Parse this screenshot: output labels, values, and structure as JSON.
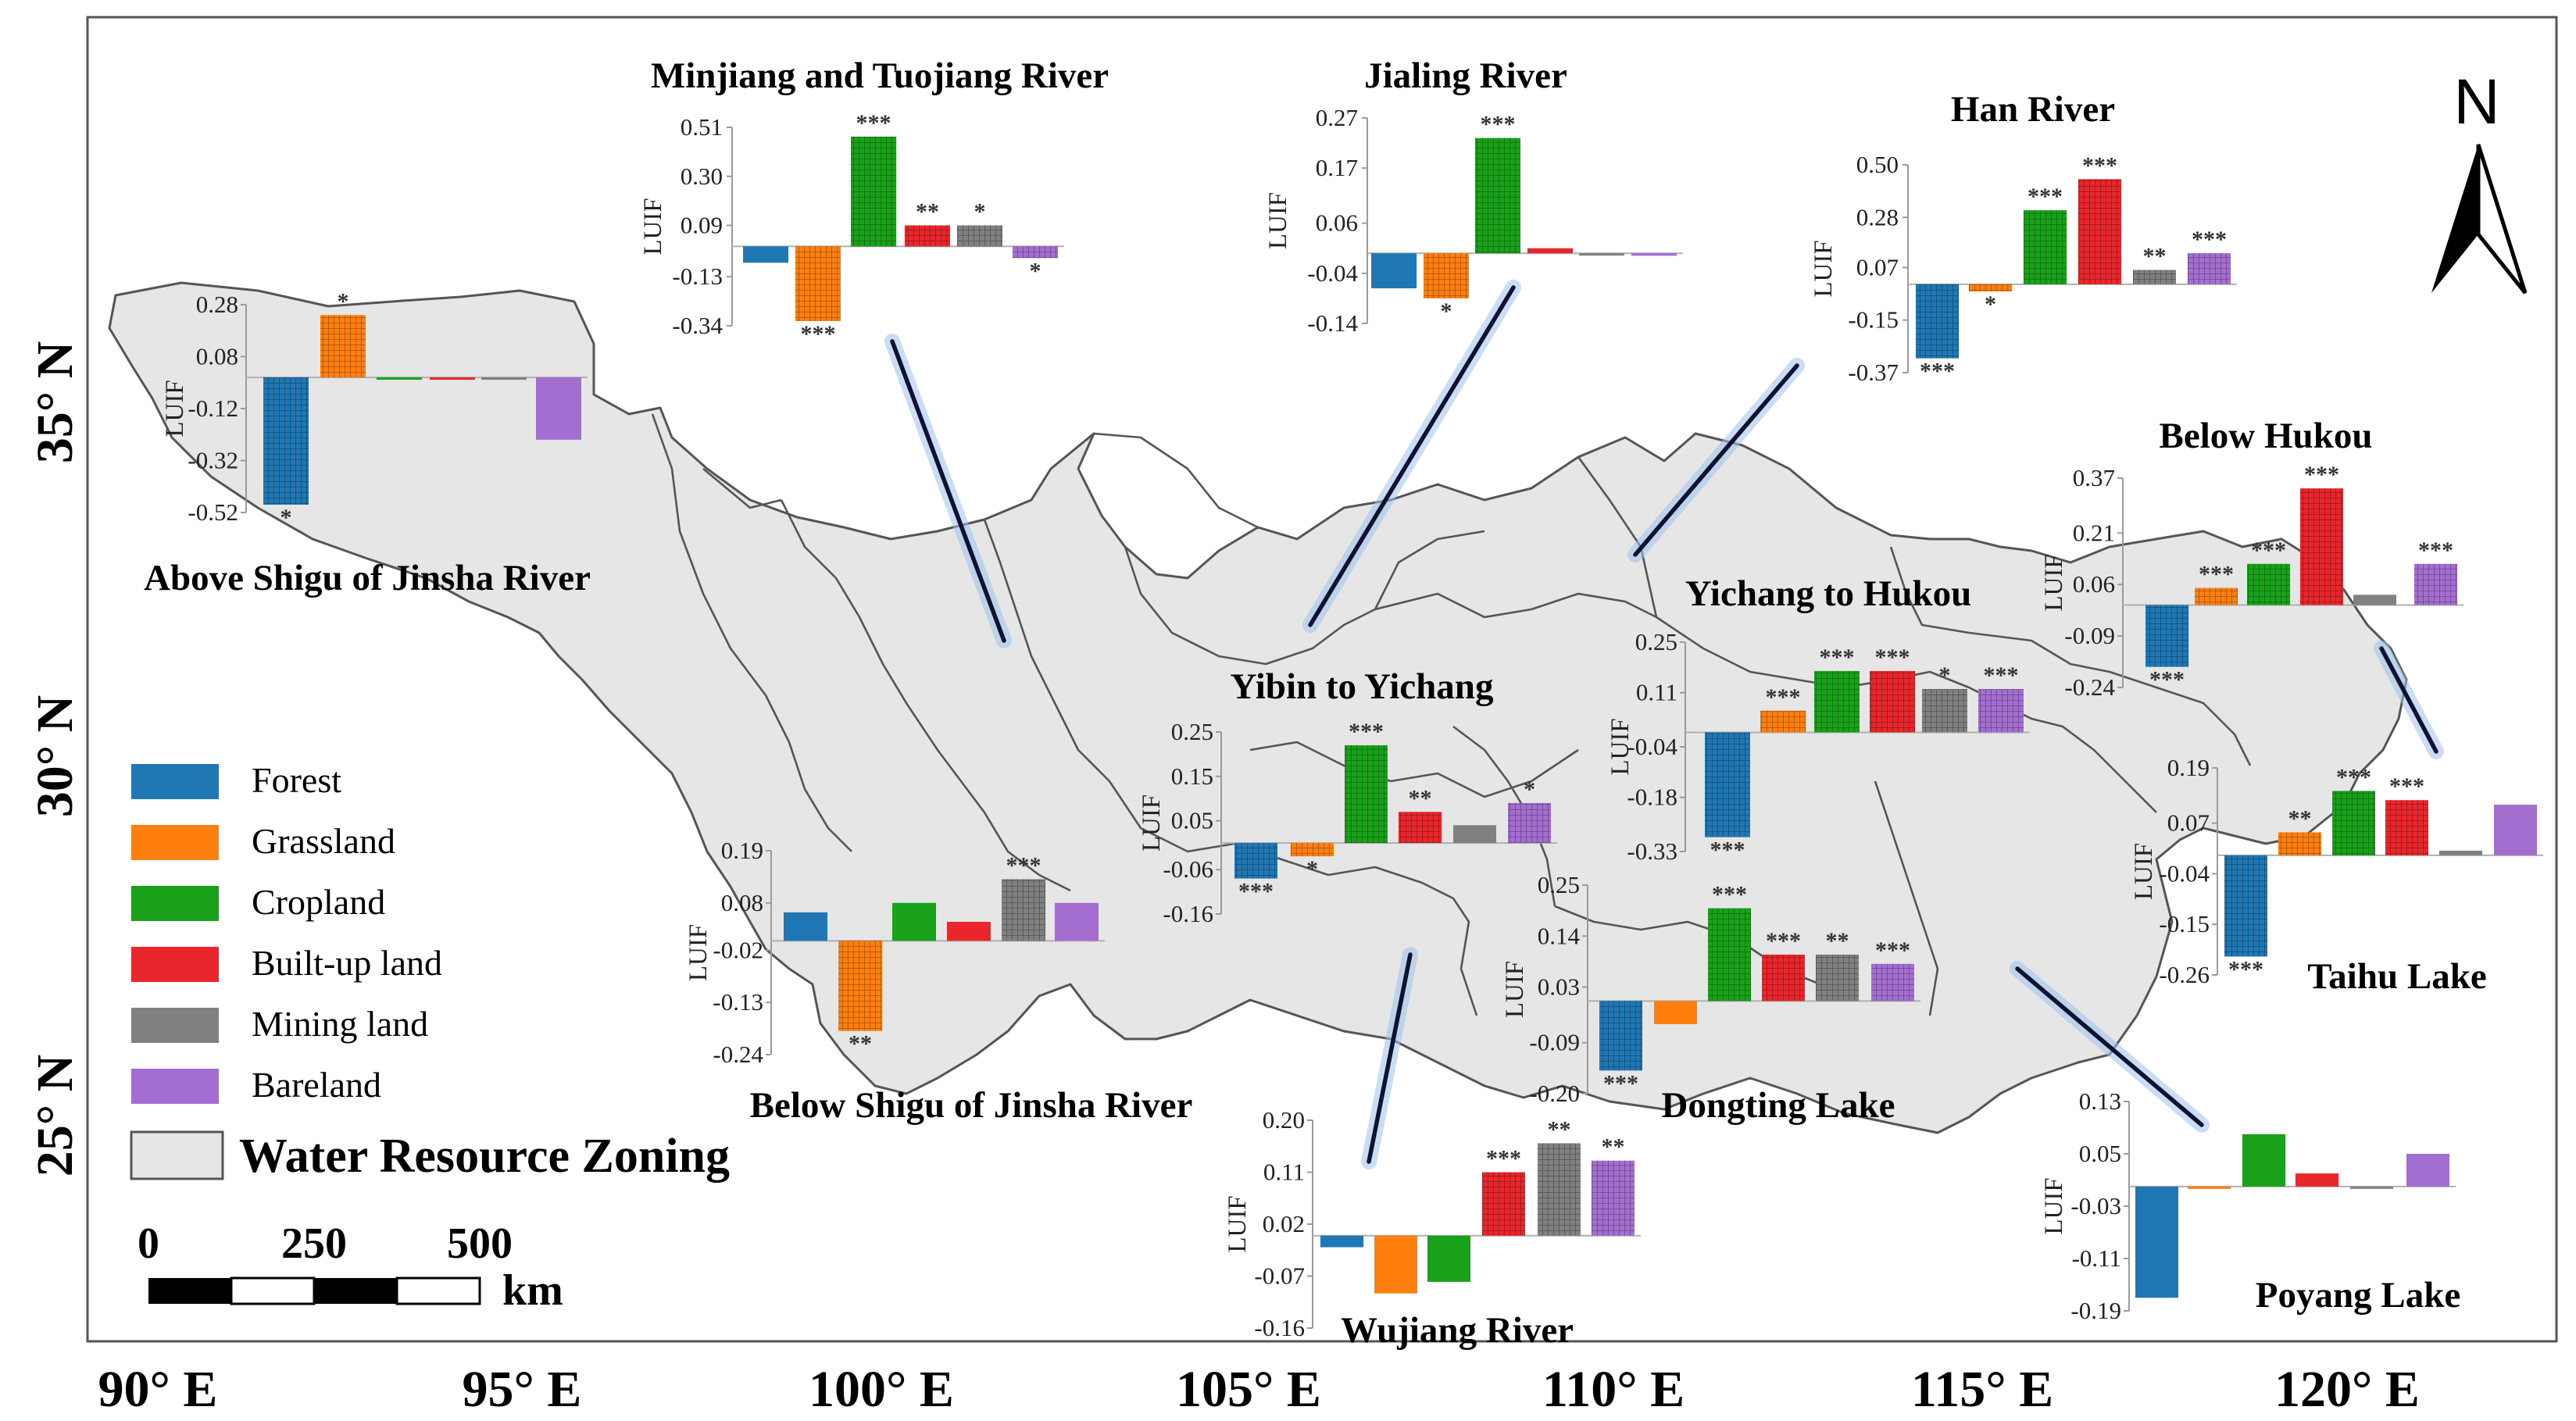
{
  "map": {
    "north_label": "N",
    "lon_labels": [
      "90° E",
      "95° E",
      "100° E",
      "105° E",
      "110° E",
      "115° E",
      "120° E"
    ],
    "lat_labels": [
      "35° N",
      "30° N",
      "25° N"
    ]
  },
  "legend": {
    "items": [
      {
        "label": "Forest",
        "color": "#1f77b4",
        "pattern": "#0d3f6b"
      },
      {
        "label": "Grassland",
        "color": "#ff7f0e",
        "pattern": "#a34b00"
      },
      {
        "label": "Cropland",
        "color": "#1aa11a",
        "pattern": "#0b560b"
      },
      {
        "label": "Built-up land",
        "color": "#e8262b",
        "pattern": "#8a1014"
      },
      {
        "label": "Mining land",
        "color": "#808080",
        "pattern": "#3c3c3c"
      },
      {
        "label": "Bareland",
        "color": "#a46ed0",
        "pattern": "#5e3482"
      }
    ],
    "zone_label": "Water Resource Zoning",
    "zone_color": "#e6e6e6"
  },
  "scale": {
    "labels": [
      "0",
      "250",
      "500"
    ],
    "unit": "km"
  },
  "chart_data": [
    {
      "type": "bar",
      "title": "Minjiang and Tuojiang River",
      "ylabel": "LUIF",
      "categories": [
        "Forest",
        "Grassland",
        "Cropland",
        "Built-up land",
        "Mining land",
        "Bareland"
      ],
      "values": [
        -0.07,
        -0.32,
        0.47,
        0.09,
        0.09,
        -0.05
      ],
      "significance": [
        "",
        "***",
        "***",
        "**",
        "*",
        "*"
      ],
      "ylim": [
        -0.34,
        0.51
      ],
      "ticks": [
        "0.51",
        "0.30",
        "0.09",
        "-0.13",
        "-0.34"
      ]
    },
    {
      "type": "bar",
      "title": "Jialing River",
      "ylabel": "LUIF",
      "categories": [
        "Forest",
        "Grassland",
        "Cropland",
        "Built-up land",
        "Mining land",
        "Bareland"
      ],
      "values": [
        -0.07,
        -0.09,
        0.23,
        0.01,
        0.0,
        -0.005
      ],
      "significance": [
        "",
        "*",
        "***",
        "",
        "",
        ""
      ],
      "ylim": [
        -0.14,
        0.27
      ],
      "ticks": [
        "0.27",
        "0.17",
        "0.06",
        "-0.04",
        "-0.14"
      ]
    },
    {
      "type": "bar",
      "title": "Han River",
      "ylabel": "LUIF",
      "categories": [
        "Forest",
        "Grassland",
        "Cropland",
        "Built-up land",
        "Mining land",
        "Bareland"
      ],
      "values": [
        -0.31,
        -0.03,
        0.31,
        0.44,
        0.06,
        0.13
      ],
      "significance": [
        "***",
        "*",
        "***",
        "***",
        "**",
        "***"
      ],
      "ylim": [
        -0.37,
        0.5
      ],
      "ticks": [
        "0.50",
        "0.28",
        "0.07",
        "-0.15",
        "-0.37"
      ]
    },
    {
      "type": "bar",
      "title": "Above Shigu of Jinsha River",
      "ylabel": "LUIF",
      "categories": [
        "Forest",
        "Grassland",
        "Cropland",
        "Built-up land",
        "Mining land",
        "Bareland"
      ],
      "values": [
        -0.49,
        0.24,
        0.0,
        0.0,
        0.0,
        -0.24
      ],
      "significance": [
        "*",
        "*",
        "",
        "",
        "",
        ""
      ],
      "ylim": [
        -0.52,
        0.28
      ],
      "ticks": [
        "0.28",
        "0.08",
        "-0.12",
        "-0.32",
        "-0.52"
      ]
    },
    {
      "type": "bar",
      "title": "Below Hukou",
      "ylabel": "LUIF",
      "categories": [
        "Forest",
        "Grassland",
        "Cropland",
        "Built-up land",
        "Mining land",
        "Bareland"
      ],
      "values": [
        -0.18,
        0.05,
        0.12,
        0.34,
        0.03,
        0.12
      ],
      "significance": [
        "***",
        "***",
        "***",
        "***",
        "",
        "***"
      ],
      "ylim": [
        -0.24,
        0.37
      ],
      "ticks": [
        "0.37",
        "0.21",
        "0.06",
        "-0.09",
        "-0.24"
      ]
    },
    {
      "type": "bar",
      "title": "Yichang to Hukou",
      "ylabel": "LUIF",
      "categories": [
        "Forest",
        "Grassland",
        "Cropland",
        "Built-up land",
        "Mining land",
        "Bareland"
      ],
      "values": [
        -0.29,
        0.06,
        0.17,
        0.17,
        0.12,
        0.12
      ],
      "significance": [
        "***",
        "***",
        "***",
        "***",
        "*",
        "***"
      ],
      "ylim": [
        -0.33,
        0.25
      ],
      "ticks": [
        "0.25",
        "0.11",
        "-0.04",
        "-0.18",
        "-0.33"
      ]
    },
    {
      "type": "bar",
      "title": "Yibin to Yichang",
      "ylabel": "LUIF",
      "categories": [
        "Forest",
        "Grassland",
        "Cropland",
        "Built-up land",
        "Mining land",
        "Bareland"
      ],
      "values": [
        -0.08,
        -0.03,
        0.22,
        0.07,
        0.04,
        0.09
      ],
      "significance": [
        "***",
        "*",
        "***",
        "**",
        "",
        "*"
      ],
      "ylim": [
        -0.16,
        0.25
      ],
      "ticks": [
        "0.25",
        "0.15",
        "0.05",
        "-0.06",
        "-0.16"
      ]
    },
    {
      "type": "bar",
      "title": "Below Shigu of Jinsha River",
      "ylabel": "LUIF",
      "categories": [
        "Forest",
        "Grassland",
        "Cropland",
        "Built-up land",
        "Mining land",
        "Bareland"
      ],
      "values": [
        0.06,
        -0.19,
        0.08,
        0.04,
        0.13,
        0.08
      ],
      "significance": [
        "",
        "**",
        "",
        "",
        "***",
        ""
      ],
      "ylim": [
        -0.24,
        0.19
      ],
      "ticks": [
        "0.19",
        "0.08",
        "-0.02",
        "-0.13",
        "-0.24"
      ]
    },
    {
      "type": "bar",
      "title": "Taihu Lake",
      "ylabel": "LUIF",
      "categories": [
        "Forest",
        "Grassland",
        "Cropland",
        "Built-up land",
        "Mining land",
        "Bareland"
      ],
      "values": [
        -0.22,
        0.05,
        0.14,
        0.12,
        0.01,
        0.11
      ],
      "significance": [
        "***",
        "**",
        "***",
        "***",
        "",
        ""
      ],
      "ylim": [
        -0.26,
        0.19
      ],
      "ticks": [
        "0.19",
        "0.07",
        "-0.04",
        "-0.15",
        "-0.26"
      ]
    },
    {
      "type": "bar",
      "title": "Dongting Lake",
      "ylabel": "LUIF",
      "categories": [
        "Forest",
        "Grassland",
        "Cropland",
        "Built-up land",
        "Mining land",
        "Bareland"
      ],
      "values": [
        -0.15,
        -0.05,
        0.2,
        0.1,
        0.1,
        0.08
      ],
      "significance": [
        "***",
        "",
        "***",
        "***",
        "**",
        "***"
      ],
      "ylim": [
        -0.2,
        0.25
      ],
      "ticks": [
        "0.25",
        "0.14",
        "0.03",
        "-0.09",
        "-0.20"
      ]
    },
    {
      "type": "bar",
      "title": "Wujiang River",
      "ylabel": "LUIF",
      "categories": [
        "Forest",
        "Grassland",
        "Cropland",
        "Built-up land",
        "Mining land",
        "Bareland"
      ],
      "values": [
        -0.02,
        -0.1,
        -0.08,
        0.11,
        0.16,
        0.13
      ],
      "significance": [
        "",
        "",
        "",
        "***",
        "**",
        "**"
      ],
      "ylim": [
        -0.16,
        0.2
      ],
      "ticks": [
        "0.20",
        "0.11",
        "0.02",
        "-0.07",
        "-0.16"
      ]
    },
    {
      "type": "bar",
      "title": "Poyang Lake",
      "ylabel": "LUIF",
      "categories": [
        "Forest",
        "Grassland",
        "Cropland",
        "Built-up land",
        "Mining land",
        "Bareland"
      ],
      "values": [
        -0.17,
        0.0,
        0.08,
        0.02,
        0.0,
        0.05
      ],
      "significance": [
        "",
        "",
        "",
        "",
        "",
        ""
      ],
      "ylim": [
        -0.19,
        0.13
      ],
      "ticks": [
        "0.13",
        "0.05",
        "-0.03",
        "-0.11",
        "-0.19"
      ]
    }
  ]
}
